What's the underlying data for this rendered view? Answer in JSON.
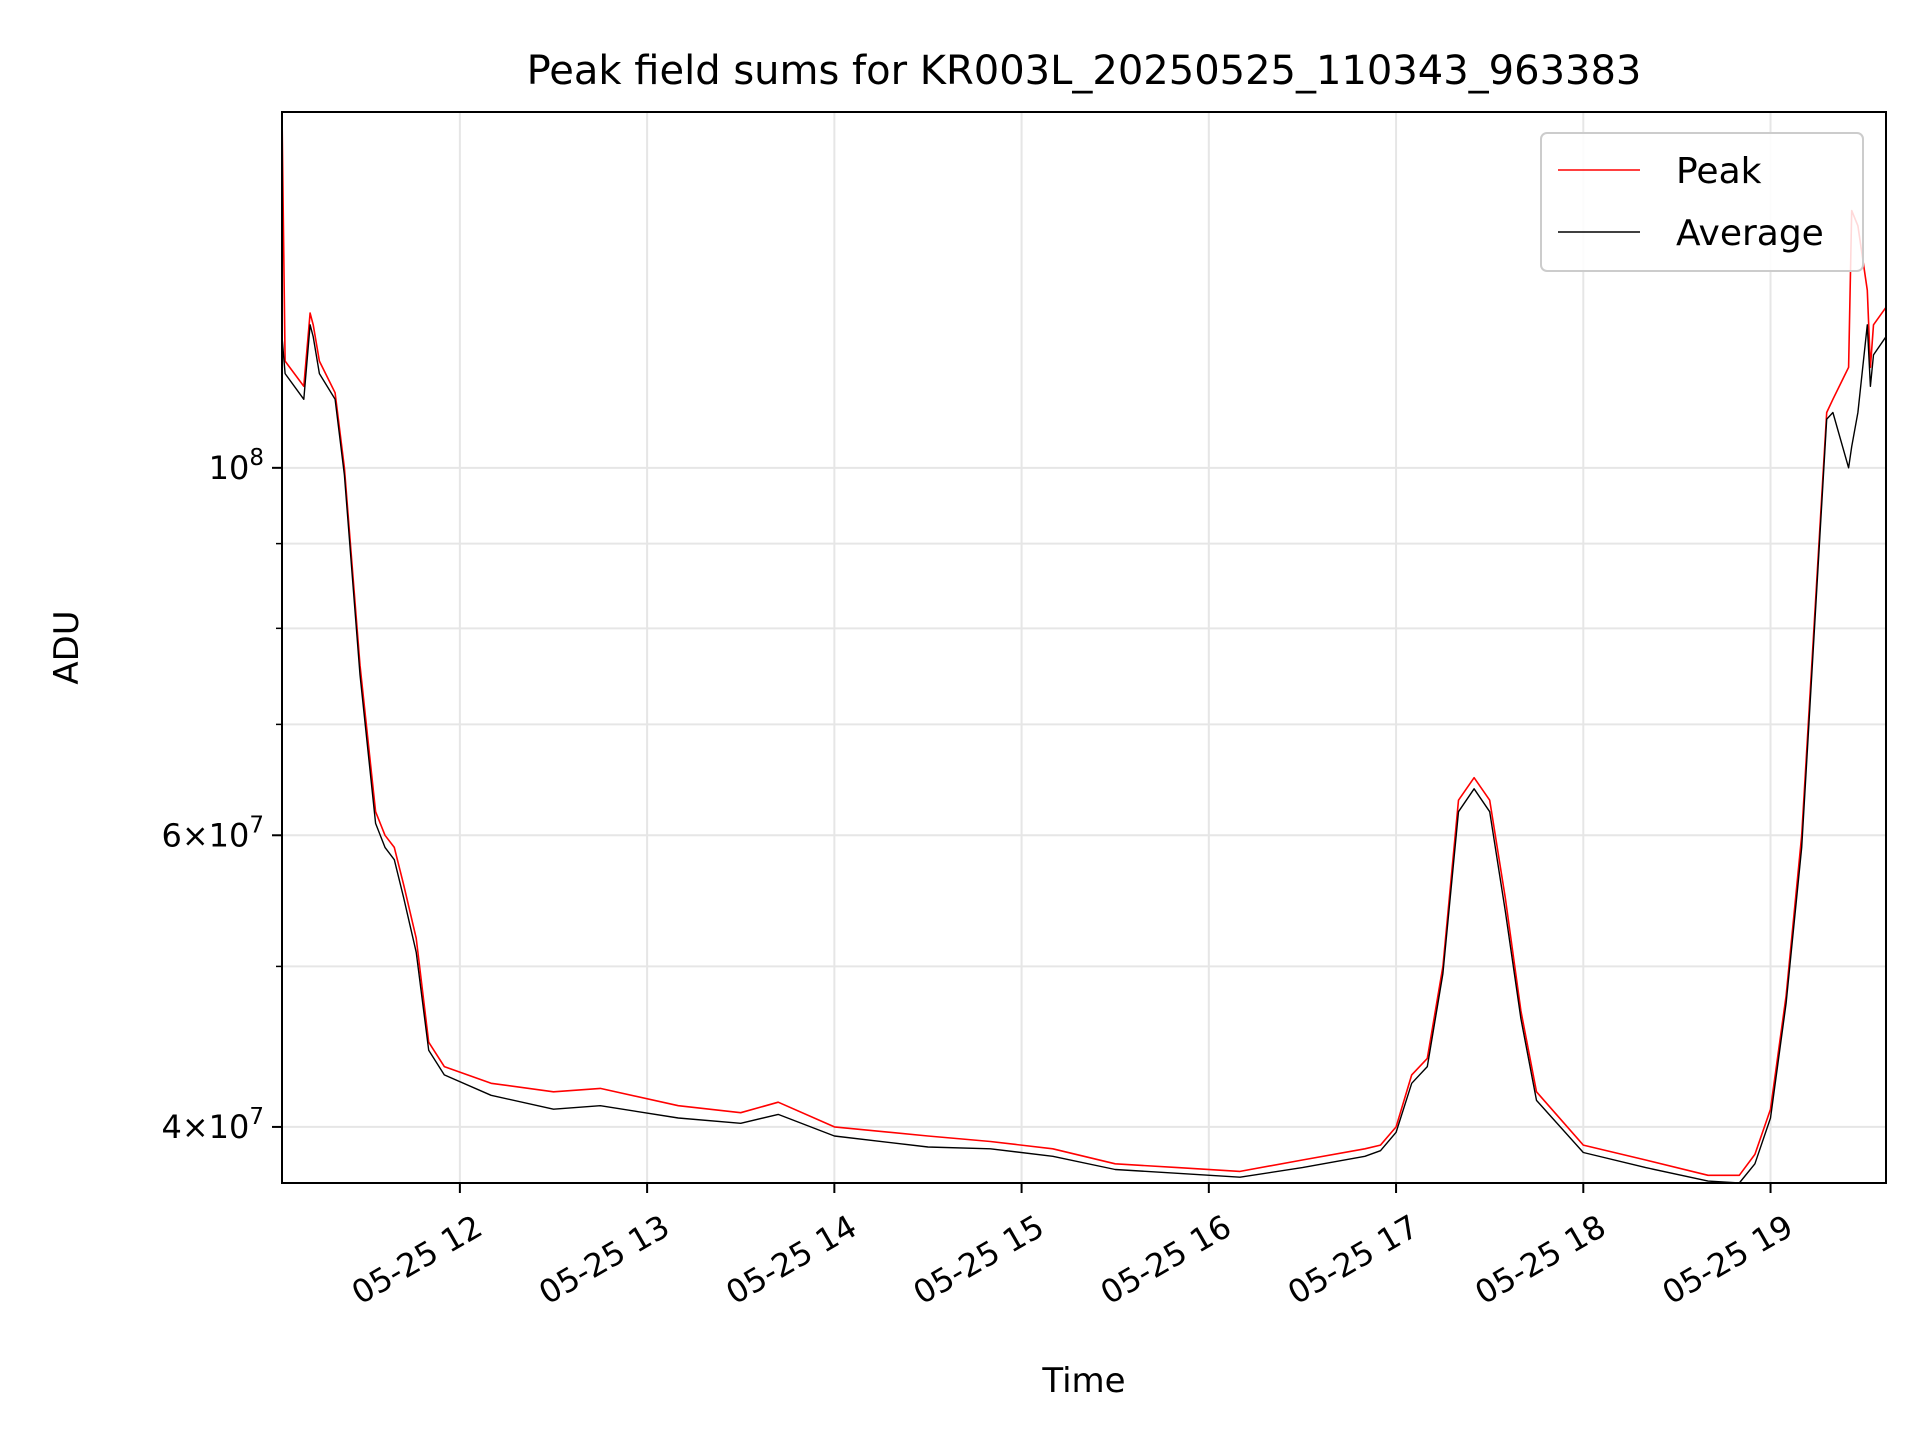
{
  "chart_data": {
    "type": "line",
    "title": "Peak field sums for KR003L_20250525_110343_963383",
    "xlabel": "Time",
    "ylabel": "ADU",
    "yscale": "log",
    "grid": true,
    "legend_position": "top-right",
    "xlim": [
      "2025-05-25 11:03",
      "2025-05-25 19:37"
    ],
    "ylim": [
      37000000,
      164000000
    ],
    "x_ticks": [
      {
        "value": "2025-05-25 12:00",
        "label": "05-25 12"
      },
      {
        "value": "2025-05-25 13:00",
        "label": "05-25 13"
      },
      {
        "value": "2025-05-25 14:00",
        "label": "05-25 14"
      },
      {
        "value": "2025-05-25 15:00",
        "label": "05-25 15"
      },
      {
        "value": "2025-05-25 16:00",
        "label": "05-25 16"
      },
      {
        "value": "2025-05-25 17:00",
        "label": "05-25 17"
      },
      {
        "value": "2025-05-25 18:00",
        "label": "05-25 18"
      },
      {
        "value": "2025-05-25 19:00",
        "label": "05-25 19"
      }
    ],
    "y_major_ticks": [
      {
        "value": 40000000,
        "base": "4",
        "times": "×",
        "mant": "10",
        "exp": "7"
      },
      {
        "value": 60000000,
        "base": "6",
        "times": "×",
        "mant": "10",
        "exp": "7"
      },
      {
        "value": 100000000,
        "base": "",
        "times": "",
        "mant": "10",
        "exp": "8"
      }
    ],
    "y_minor_ticks": [
      50000000,
      70000000,
      80000000,
      90000000
    ],
    "series": [
      {
        "name": "Peak",
        "color": "#ff0000",
        "x": [
          "2025-05-25 11:03",
          "2025-05-25 11:04",
          "2025-05-25 11:10",
          "2025-05-25 11:12",
          "2025-05-25 11:13",
          "2025-05-25 11:15",
          "2025-05-25 11:20",
          "2025-05-25 11:23",
          "2025-05-25 11:28",
          "2025-05-25 11:33",
          "2025-05-25 11:36",
          "2025-05-25 11:39",
          "2025-05-25 11:42",
          "2025-05-25 11:46",
          "2025-05-25 11:50",
          "2025-05-25 11:55",
          "2025-05-25 12:10",
          "2025-05-25 12:30",
          "2025-05-25 12:45",
          "2025-05-25 13:10",
          "2025-05-25 13:30",
          "2025-05-25 13:42",
          "2025-05-25 14:00",
          "2025-05-25 14:30",
          "2025-05-25 14:50",
          "2025-05-25 15:10",
          "2025-05-25 15:30",
          "2025-05-25 15:50",
          "2025-05-25 16:10",
          "2025-05-25 16:30",
          "2025-05-25 16:50",
          "2025-05-25 16:55",
          "2025-05-25 17:00",
          "2025-05-25 17:05",
          "2025-05-25 17:10",
          "2025-05-25 17:15",
          "2025-05-25 17:20",
          "2025-05-25 17:25",
          "2025-05-25 17:30",
          "2025-05-25 17:35",
          "2025-05-25 17:40",
          "2025-05-25 17:45",
          "2025-05-25 18:00",
          "2025-05-25 18:20",
          "2025-05-25 18:40",
          "2025-05-25 18:50",
          "2025-05-25 18:55",
          "2025-05-25 19:00",
          "2025-05-25 19:05",
          "2025-05-25 19:10",
          "2025-05-25 19:18",
          "2025-05-25 19:20",
          "2025-05-25 19:25",
          "2025-05-25 19:26",
          "2025-05-25 19:28",
          "2025-05-25 19:31",
          "2025-05-25 19:32",
          "2025-05-25 19:33",
          "2025-05-25 19:37"
        ],
        "y": [
          164000000,
          116000000,
          112000000,
          124000000,
          122000000,
          116000000,
          111000000,
          100000000,
          76000000,
          62000000,
          60000000,
          59000000,
          56000000,
          52000000,
          45000000,
          43500000,
          42500000,
          42000000,
          42200000,
          41200000,
          40800000,
          41400000,
          40000000,
          39500000,
          39200000,
          38800000,
          38000000,
          37800000,
          37600000,
          38200000,
          38800000,
          39000000,
          40000000,
          43000000,
          44000000,
          50000000,
          63000000,
          65000000,
          63000000,
          55000000,
          47000000,
          42000000,
          39000000,
          38200000,
          37400000,
          37400000,
          38500000,
          41000000,
          48000000,
          60000000,
          108000000,
          110000000,
          115000000,
          143000000,
          140000000,
          128000000,
          115000000,
          122000000,
          125000000
        ]
      },
      {
        "name": "Average",
        "color": "#000000",
        "x": [
          "2025-05-25 11:03",
          "2025-05-25 11:04",
          "2025-05-25 11:10",
          "2025-05-25 11:12",
          "2025-05-25 11:13",
          "2025-05-25 11:15",
          "2025-05-25 11:20",
          "2025-05-25 11:23",
          "2025-05-25 11:28",
          "2025-05-25 11:33",
          "2025-05-25 11:36",
          "2025-05-25 11:39",
          "2025-05-25 11:42",
          "2025-05-25 11:46",
          "2025-05-25 11:50",
          "2025-05-25 11:55",
          "2025-05-25 12:10",
          "2025-05-25 12:30",
          "2025-05-25 12:45",
          "2025-05-25 13:10",
          "2025-05-25 13:30",
          "2025-05-25 13:42",
          "2025-05-25 14:00",
          "2025-05-25 14:30",
          "2025-05-25 14:50",
          "2025-05-25 15:10",
          "2025-05-25 15:30",
          "2025-05-25 15:50",
          "2025-05-25 16:10",
          "2025-05-25 16:30",
          "2025-05-25 16:50",
          "2025-05-25 16:55",
          "2025-05-25 17:00",
          "2025-05-25 17:05",
          "2025-05-25 17:10",
          "2025-05-25 17:15",
          "2025-05-25 17:20",
          "2025-05-25 17:25",
          "2025-05-25 17:30",
          "2025-05-25 17:35",
          "2025-05-25 17:40",
          "2025-05-25 17:45",
          "2025-05-25 18:00",
          "2025-05-25 18:20",
          "2025-05-25 18:40",
          "2025-05-25 18:50",
          "2025-05-25 18:55",
          "2025-05-25 19:00",
          "2025-05-25 19:05",
          "2025-05-25 19:10",
          "2025-05-25 19:18",
          "2025-05-25 19:20",
          "2025-05-25 19:25",
          "2025-05-25 19:26",
          "2025-05-25 19:28",
          "2025-05-25 19:31",
          "2025-05-25 19:32",
          "2025-05-25 19:33",
          "2025-05-25 19:37"
        ],
        "y": [
          120000000,
          114000000,
          110000000,
          122000000,
          120000000,
          114000000,
          110000000,
          99000000,
          75000000,
          61000000,
          59000000,
          58000000,
          55000000,
          51000000,
          44500000,
          43000000,
          41800000,
          41000000,
          41200000,
          40500000,
          40200000,
          40700000,
          39500000,
          38900000,
          38800000,
          38400000,
          37700000,
          37500000,
          37300000,
          37800000,
          38400000,
          38700000,
          39700000,
          42500000,
          43500000,
          49500000,
          62000000,
          64000000,
          62000000,
          54000000,
          46500000,
          41500000,
          38600000,
          37800000,
          37100000,
          37000000,
          38000000,
          40500000,
          47500000,
          59000000,
          107000000,
          108000000,
          100000000,
          103000000,
          108000000,
          122000000,
          112000000,
          117000000,
          120000000
        ]
      }
    ]
  }
}
